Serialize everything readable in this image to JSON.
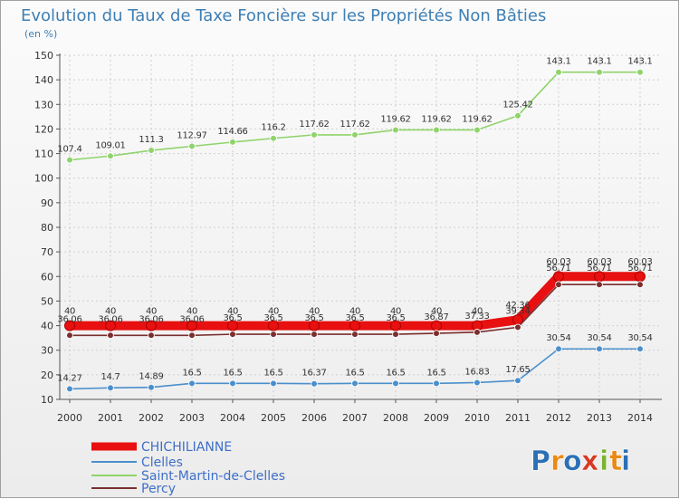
{
  "chart_data": {
    "type": "line",
    "title": "Evolution du Taux de Taxe Foncière sur les Propriétés Non Bâties",
    "ylabel": "(en %)",
    "xlabel": "",
    "ylim": [
      10,
      150
    ],
    "yticks": [
      10,
      20,
      30,
      40,
      50,
      60,
      70,
      80,
      90,
      100,
      110,
      120,
      130,
      140,
      150
    ],
    "x": [
      "2000",
      "2001",
      "2002",
      "2003",
      "2004",
      "2005",
      "2006",
      "2007",
      "2008",
      "2009",
      "2010",
      "2011",
      "2012",
      "2013",
      "2014"
    ],
    "series": [
      {
        "name": "Saint-Martin-de-Clelles",
        "color": "#8fd36b",
        "values": [
          107.4,
          109.01,
          111.3,
          112.97,
          114.66,
          116.2,
          117.62,
          117.62,
          119.62,
          119.62,
          119.62,
          125.42,
          143.1,
          143.1,
          143.1
        ],
        "labels": [
          "107.4",
          "109.01",
          "111.3",
          "112.97",
          "114.66",
          "116.2",
          "117.62",
          "117.62",
          "119.62",
          "119.62",
          "119.62",
          "125.42",
          "143.1",
          "143.1",
          "143.1"
        ]
      },
      {
        "name": "CHICHILIANNE",
        "color": "#e81010",
        "values": [
          40,
          40,
          40,
          40,
          40,
          40,
          40,
          40,
          40,
          40,
          40,
          42.36,
          60.03,
          60.03,
          60.03
        ],
        "labels": [
          "40",
          "40",
          "40",
          "40",
          "40",
          "40",
          "40",
          "40",
          "40",
          "40",
          "40",
          "42.36",
          "60.03",
          "60.03",
          "60.03"
        ]
      },
      {
        "name": "Percy",
        "color": "#7a2e2e",
        "values": [
          36.06,
          36.06,
          36.06,
          36.06,
          36.5,
          36.5,
          36.5,
          36.5,
          36.5,
          36.87,
          37.33,
          39.34,
          56.71,
          56.71,
          56.71
        ],
        "labels": [
          "36.06",
          "36.06",
          "36.06",
          "36.06",
          "36.5",
          "36.5",
          "36.5",
          "36.5",
          "36.5",
          "36.87",
          "37.33",
          "39.34",
          "56.71",
          "56.71",
          "56.71"
        ]
      },
      {
        "name": "Clelles",
        "color": "#4a8fcc",
        "values": [
          14.27,
          14.7,
          14.89,
          16.5,
          16.5,
          16.5,
          16.37,
          16.5,
          16.5,
          16.5,
          16.83,
          17.65,
          30.54,
          30.54,
          30.54
        ],
        "labels": [
          "14.27",
          "14.7",
          "14.89",
          "16.5",
          "16.5",
          "16.5",
          "16.37",
          "16.5",
          "16.5",
          "16.5",
          "16.83",
          "17.65",
          "30.54",
          "30.54",
          "30.54"
        ]
      }
    ],
    "legend": [
      "CHICHILIANNE",
      "Clelles",
      "Saint-Martin-de-Clelles",
      "Percy"
    ]
  },
  "logo": {
    "letters": [
      "P",
      "r",
      "o",
      "x",
      "i",
      "t",
      "i"
    ],
    "colors": [
      "#2c6fb5",
      "#e98a14",
      "#2c6fb5",
      "#d63a22",
      "#7ab32e",
      "#e98a14",
      "#2c6fb5"
    ]
  }
}
